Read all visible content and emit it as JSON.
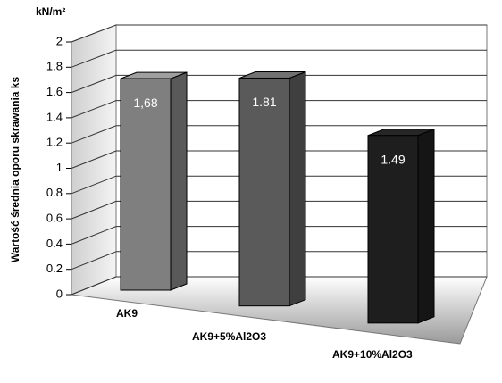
{
  "chart_data": {
    "type": "bar3d",
    "y_unit": "kN/m²",
    "ylabel": "Wartość średnia oporu skrawania ks",
    "categories": [
      "AK9",
      "AK9+5%Al2O3",
      "AK9+10%Al2O3"
    ],
    "values": [
      1.68,
      1.81,
      1.49
    ],
    "value_labels": [
      "1,68",
      "1.81",
      "1.49"
    ],
    "colors": [
      "#7f7f7f",
      "#5a5a5a",
      "#1e1e1e"
    ],
    "ylim": [
      0,
      2
    ],
    "yticks": [
      0,
      0.2,
      0.4,
      0.6,
      0.8,
      1,
      1.2,
      1.4,
      1.6,
      1.8,
      2
    ],
    "grid": true
  }
}
